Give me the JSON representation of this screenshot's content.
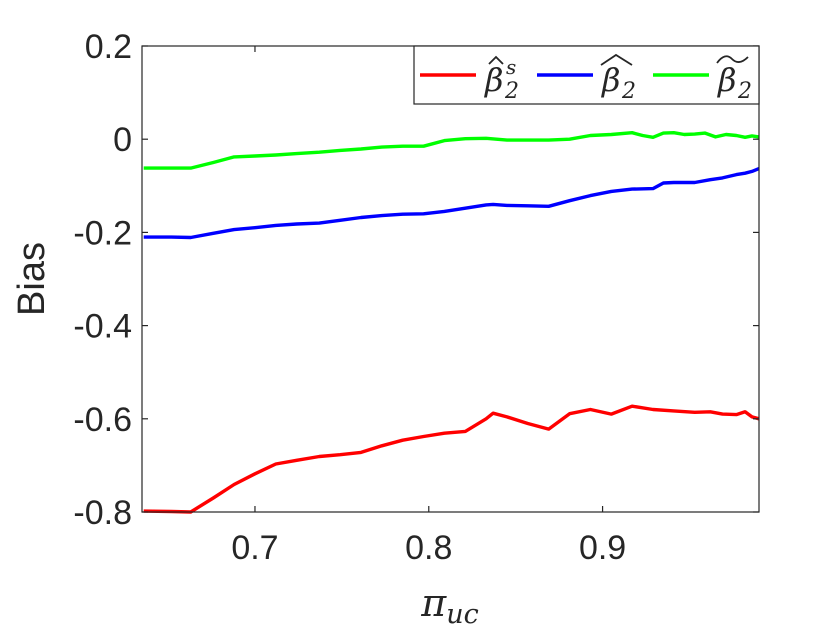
{
  "chart_data": {
    "type": "line",
    "xlabel": "π",
    "xlabel_subscript": "uc",
    "ylabel": "Bias",
    "xlim": [
      0.635,
      0.99
    ],
    "ylim": [
      -0.8,
      0.2
    ],
    "xticks": [
      0.7,
      0.8,
      0.9
    ],
    "xtick_labels": [
      "0.7",
      "0.8",
      "0.9"
    ],
    "yticks": [
      0.2,
      0,
      -0.2,
      -0.4,
      -0.6,
      -0.8
    ],
    "ytick_labels": [
      "0.2",
      "0",
      "-0.2",
      "-0.4",
      "-0.6",
      "-0.8"
    ],
    "grid": false,
    "legend_position": "top-right",
    "series": [
      {
        "name": "β̂₂ˢ",
        "legend": {
          "base": "β",
          "accent": "hat",
          "sub": "2",
          "sup": "s"
        },
        "color": "#ff0000",
        "x": [
          0.636,
          0.652,
          0.663,
          0.676,
          0.688,
          0.7,
          0.712,
          0.724,
          0.737,
          0.749,
          0.761,
          0.773,
          0.785,
          0.797,
          0.809,
          0.821,
          0.833,
          0.837,
          0.845,
          0.857,
          0.869,
          0.881,
          0.893,
          0.905,
          0.917,
          0.929,
          0.941,
          0.953,
          0.962,
          0.969,
          0.977,
          0.982,
          0.986,
          0.99
        ],
        "y": [
          -0.798,
          -0.799,
          -0.8,
          -0.77,
          -0.741,
          -0.718,
          -0.697,
          -0.689,
          -0.681,
          -0.677,
          -0.672,
          -0.658,
          -0.646,
          -0.638,
          -0.631,
          -0.627,
          -0.6,
          -0.588,
          -0.596,
          -0.61,
          -0.622,
          -0.589,
          -0.58,
          -0.59,
          -0.573,
          -0.58,
          -0.583,
          -0.586,
          -0.585,
          -0.59,
          -0.591,
          -0.585,
          -0.596,
          -0.6
        ]
      },
      {
        "name": "β̂₂",
        "legend": {
          "base": "β",
          "accent": "widehat",
          "sub": "2"
        },
        "color": "#0000ff",
        "x": [
          0.636,
          0.652,
          0.663,
          0.676,
          0.688,
          0.7,
          0.712,
          0.724,
          0.737,
          0.749,
          0.761,
          0.773,
          0.785,
          0.797,
          0.809,
          0.821,
          0.833,
          0.837,
          0.845,
          0.857,
          0.869,
          0.881,
          0.893,
          0.905,
          0.917,
          0.929,
          0.935,
          0.941,
          0.953,
          0.962,
          0.969,
          0.977,
          0.982,
          0.986,
          0.99
        ],
        "y": [
          -0.21,
          -0.21,
          -0.211,
          -0.202,
          -0.194,
          -0.19,
          -0.185,
          -0.182,
          -0.18,
          -0.174,
          -0.168,
          -0.164,
          -0.161,
          -0.16,
          -0.155,
          -0.148,
          -0.141,
          -0.14,
          -0.142,
          -0.143,
          -0.144,
          -0.132,
          -0.121,
          -0.112,
          -0.107,
          -0.106,
          -0.094,
          -0.093,
          -0.093,
          -0.087,
          -0.083,
          -0.076,
          -0.073,
          -0.069,
          -0.063
        ]
      },
      {
        "name": "β̃₂",
        "legend": {
          "base": "β",
          "accent": "widetilde",
          "sub": "2"
        },
        "color": "#00ff00",
        "x": [
          0.636,
          0.652,
          0.663,
          0.676,
          0.688,
          0.7,
          0.712,
          0.724,
          0.737,
          0.749,
          0.761,
          0.773,
          0.785,
          0.797,
          0.809,
          0.821,
          0.833,
          0.845,
          0.857,
          0.869,
          0.881,
          0.893,
          0.905,
          0.917,
          0.923,
          0.929,
          0.935,
          0.941,
          0.947,
          0.953,
          0.959,
          0.965,
          0.971,
          0.977,
          0.982,
          0.986,
          0.99
        ],
        "y": [
          -0.062,
          -0.062,
          -0.062,
          -0.05,
          -0.038,
          -0.036,
          -0.034,
          -0.031,
          -0.028,
          -0.024,
          -0.021,
          -0.017,
          -0.015,
          -0.015,
          -0.003,
          0.001,
          0.002,
          -0.002,
          -0.002,
          -0.002,
          0.0,
          0.008,
          0.01,
          0.014,
          0.008,
          0.004,
          0.013,
          0.014,
          0.01,
          0.011,
          0.013,
          0.005,
          0.01,
          0.008,
          0.004,
          0.007,
          0.005
        ]
      }
    ]
  }
}
